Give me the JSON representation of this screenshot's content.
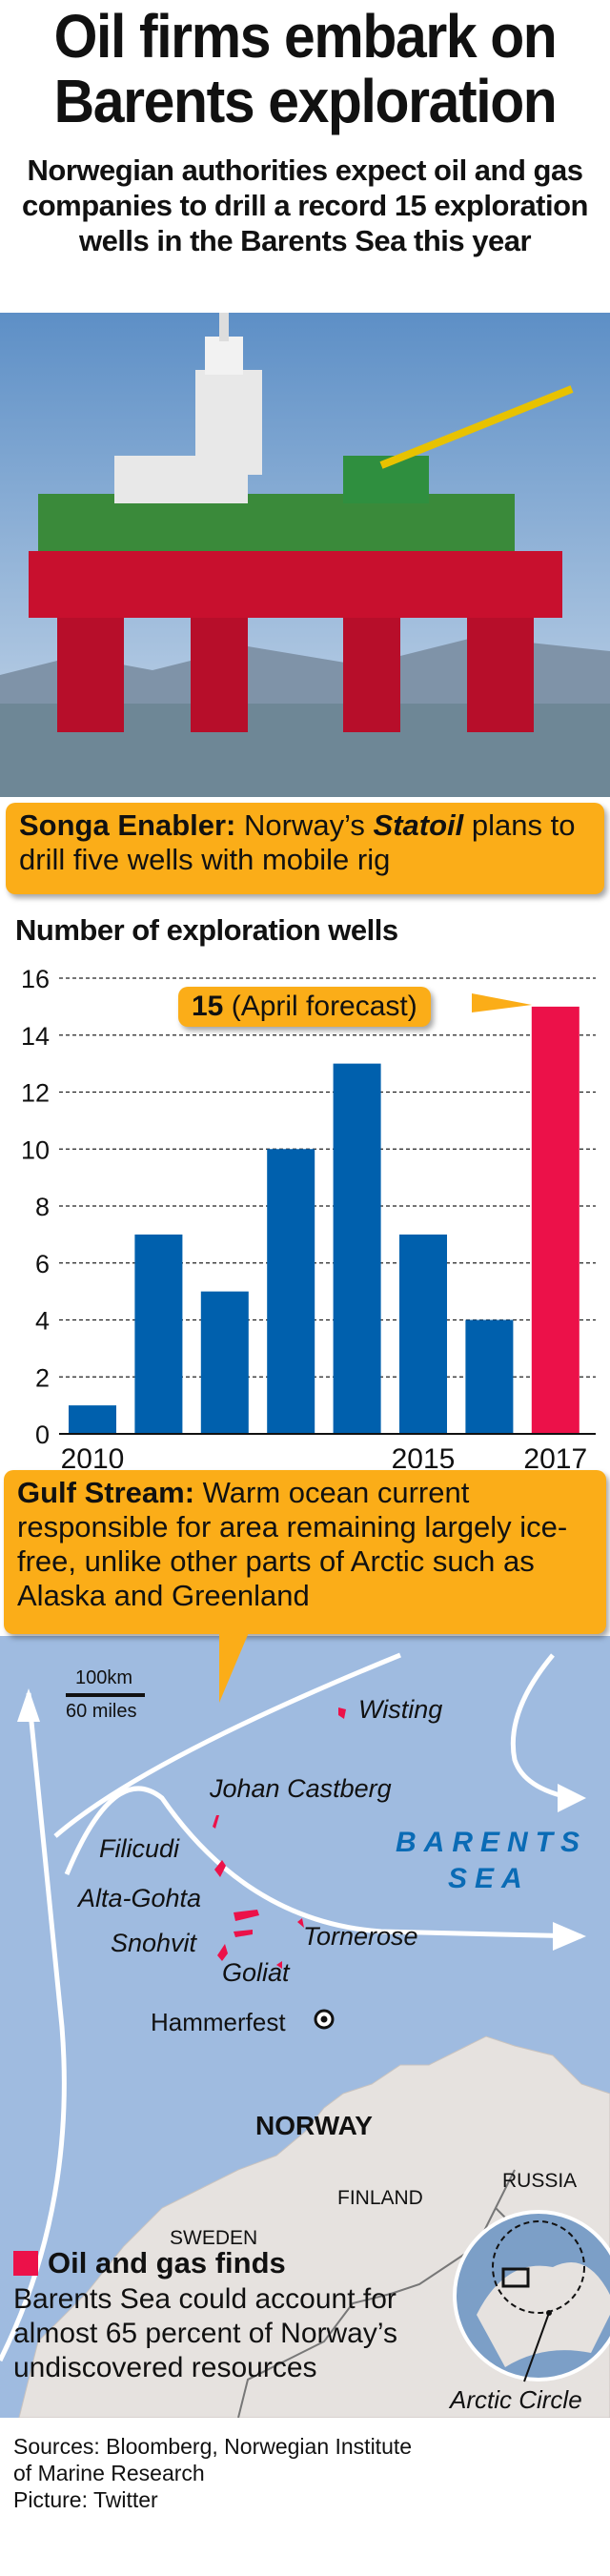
{
  "header": {
    "title_line1": "Oil firms embark on",
    "title_line2": "Barents exploration",
    "subtitle": "Norwegian authorities expect oil and gas companies to drill a record 15 exploration wells in the Barents Sea this year"
  },
  "photo_caption": {
    "label": "Songa Enabler:",
    "text_a": " Norway’s ",
    "company": "Statoil",
    "text_b": " plans to drill five wells with mobile rig"
  },
  "chart_data": {
    "type": "bar",
    "title": "Number of exploration wells",
    "categories": [
      "2010",
      "2011",
      "2012",
      "2013",
      "2014",
      "2015",
      "2016",
      "2017"
    ],
    "x_tick_labels": [
      "2010",
      "2015",
      "2017"
    ],
    "values": [
      1,
      7,
      5,
      10,
      13,
      7,
      4,
      15
    ],
    "highlight_index": 7,
    "ylim": [
      0,
      16
    ],
    "yticks": [
      0,
      2,
      4,
      6,
      8,
      10,
      12,
      14,
      16
    ],
    "annotation": {
      "value": "15",
      "text": " (April forecast)"
    },
    "colors": {
      "bar": "#0060ad",
      "highlight": "#ec1149"
    },
    "grid": true
  },
  "gulf_stream": {
    "label": "Gulf Stream:",
    "text": " Warm ocean current responsible for area remaining largely ice-free, unlike other parts of Arctic such as Alaska and Greenland"
  },
  "map": {
    "scale_km": "100km",
    "scale_miles": "60 miles",
    "sea_line1": "BARENTS",
    "sea_line2": "SEA",
    "fields": [
      "Wisting",
      "Johan Castberg",
      "Filicudi",
      "Alta-Gohta",
      "Snohvit",
      "Tornerose",
      "Goliat"
    ],
    "city": "Hammerfest",
    "countries": [
      "NORWAY",
      "FINLAND",
      "SWEDEN",
      "RUSSIA"
    ],
    "globe_label": "Arctic Circle",
    "colors": {
      "sea": "#9fbbe0",
      "land": "#e6e2df",
      "finds": "#ec1149",
      "sea_label": "#0a6bb5"
    }
  },
  "legend": {
    "title": "Oil and gas finds",
    "text": "Barents Sea could account for almost 65 percent of Norway’s undiscovered resources"
  },
  "sources": {
    "line1": "Sources: Bloomberg, Norwegian Institute",
    "line2": "of Marine Research",
    "line3": "Picture: Twitter"
  }
}
